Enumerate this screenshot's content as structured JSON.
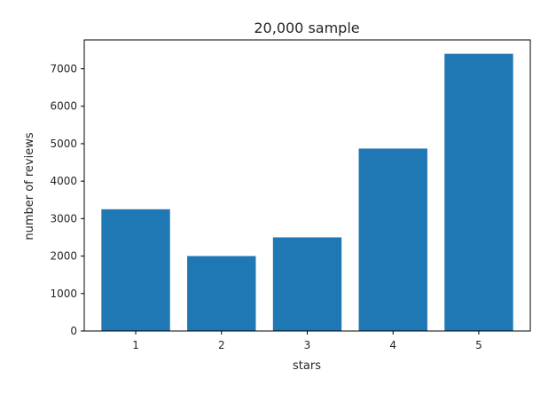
{
  "chart_data": {
    "type": "bar",
    "title": "20,000 sample",
    "xlabel": "stars",
    "ylabel": "number of reviews",
    "categories": [
      "1",
      "2",
      "3",
      "4",
      "5"
    ],
    "values": [
      3250,
      2000,
      2500,
      4870,
      7400
    ],
    "ylim": [
      0,
      7770
    ],
    "yticks": [
      0,
      1000,
      2000,
      3000,
      4000,
      5000,
      6000,
      7000
    ],
    "grid": false,
    "bar_color": "#1f77b4"
  }
}
